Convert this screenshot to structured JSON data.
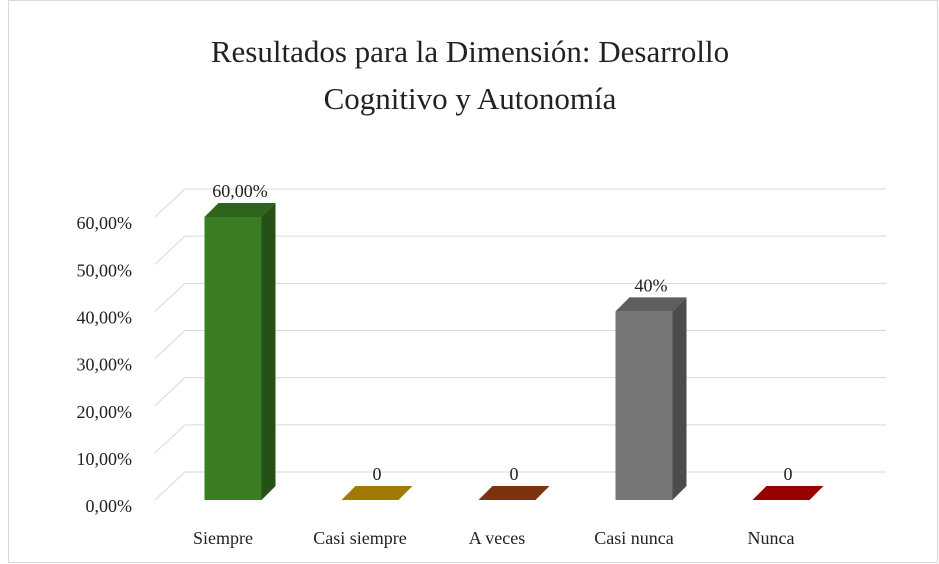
{
  "chart_data": {
    "type": "bar3d",
    "title": "Resultados para la Dimensión: Desarrollo Cognitivo y Autonomía",
    "categories": [
      "Siempre",
      "Casi siempre",
      "A veces",
      "Casi nunca",
      "Nunca"
    ],
    "values": [
      60,
      0,
      0,
      40,
      0
    ],
    "value_labels": [
      "60,00%",
      "0",
      "0",
      "40%",
      "0"
    ],
    "colors": [
      "#3a7d22",
      "#c99a06",
      "#9a4012",
      "#767676",
      "#c00000"
    ],
    "ylim": [
      0,
      60
    ],
    "yticks": [
      {
        "value": 0,
        "label": "0,00%"
      },
      {
        "value": 10,
        "label": "10,00%"
      },
      {
        "value": 20,
        "label": "20,00%"
      },
      {
        "value": 30,
        "label": "30,00%"
      },
      {
        "value": 40,
        "label": "40,00%"
      },
      {
        "value": 50,
        "label": "50,00%"
      },
      {
        "value": 60,
        "label": "60,00%"
      }
    ],
    "grid": true
  }
}
